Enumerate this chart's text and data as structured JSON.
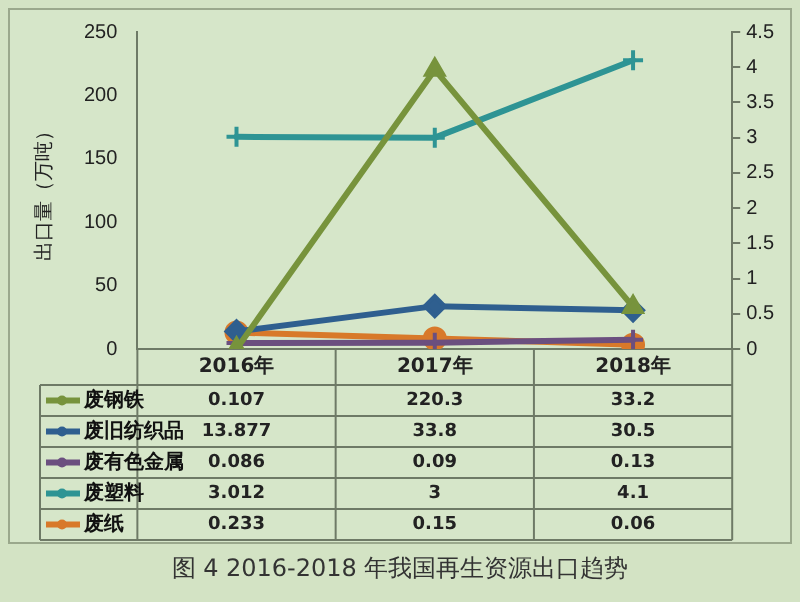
{
  "chart_data": {
    "type": "line",
    "title": "图 4   2016-2018 年我国再生资源出口趋势",
    "ylabel": "出口量（万吨）",
    "categories": [
      "2016年",
      "2017年",
      "2018年"
    ],
    "series": [
      {
        "name": "废钢铁",
        "color": "#77933c",
        "values": [
          0.107,
          220.3,
          33.2
        ],
        "marker": "triangle"
      },
      {
        "name": "废旧纺织品",
        "color": "#2f5f8f",
        "values": [
          13.877,
          33.8,
          30.5
        ],
        "marker": "diamond"
      },
      {
        "name": "废有色金属",
        "color": "#6b4f7f",
        "values": [
          0.086,
          0.09,
          0.13
        ],
        "axis": "y2",
        "marker": "cross"
      },
      {
        "name": "废塑料",
        "color": "#2e9494",
        "values": [
          3.012,
          3,
          4.1
        ],
        "axis": "y2",
        "marker": "cross"
      },
      {
        "name": "废纸",
        "color": "#d8792a",
        "values": [
          0.233,
          0.15,
          0.06
        ],
        "axis": "y2",
        "marker": "circle"
      }
    ],
    "ylim": [
      0,
      250
    ],
    "yticks": [
      0,
      50,
      100,
      150,
      200,
      250
    ],
    "y2lim": [
      0,
      4.5
    ],
    "y2ticks": [
      0,
      0.5,
      1,
      1.5,
      2,
      2.5,
      3,
      3.5,
      4,
      4.5
    ],
    "grid": false,
    "legend": "bottom",
    "data_labels": true,
    "line_style": "solid"
  }
}
